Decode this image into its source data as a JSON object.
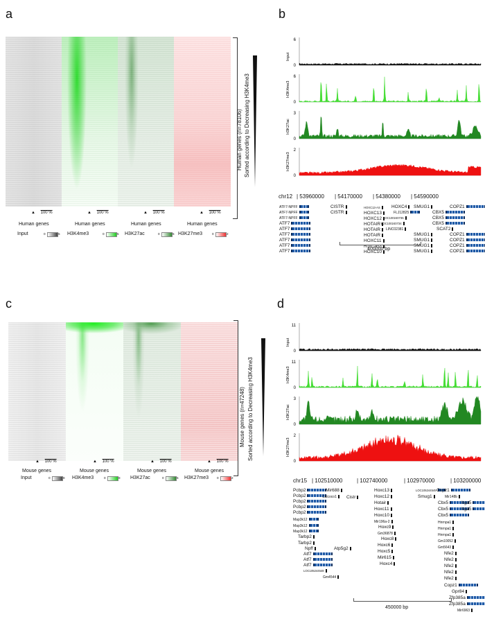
{
  "panels": {
    "a": {
      "letter": "a",
      "columns": [
        "Human genes",
        "Human genes",
        "Human genes",
        "Human genes"
      ],
      "scale_label": "100 %",
      "legend": [
        {
          "name": "Input",
          "min": "0",
          "max": "5",
          "color": "#555555"
        },
        {
          "name": "H3K4me3",
          "min": "0",
          "max": "5",
          "color": "#22cc22"
        },
        {
          "name": "H3K27ac",
          "min": "0",
          "max": "5",
          "color": "#338833"
        },
        {
          "name": "H3K27me3",
          "min": "0",
          "max": "2",
          "color": "#ee3333"
        }
      ],
      "side_label_1": "Human genes (n=78106)",
      "side_label_2": "Sorted according to Decreasing H3K4me3"
    },
    "b": {
      "letter": "b",
      "tracks": [
        {
          "name": "Input",
          "ymax": "6",
          "ymin": "0",
          "color": "#111111"
        },
        {
          "name": "H3K4me3",
          "ymax": "6",
          "ymin": "0",
          "color": "#44dd33"
        },
        {
          "name": "H3K27ac",
          "ymax": "3",
          "ymin": "0",
          "color": "#228822"
        },
        {
          "name": "H3K27me3",
          "ymax": "2",
          "ymin": "0",
          "color": "#ee1111"
        }
      ],
      "chrom": "chr12",
      "coords": [
        "| 53960000",
        "| 54170000",
        "| 54380000",
        "| 54590000"
      ],
      "genes": [
        {
          "label": "ATF7-NPFF",
          "kind": "bar",
          "size": "s"
        },
        {
          "label": "ATF7-NPFF",
          "kind": "bar",
          "size": "s"
        },
        {
          "label": "ATF7-NPFF",
          "kind": "bar",
          "size": "s"
        },
        {
          "label": "ATF7",
          "kind": "bar",
          "size": "l"
        },
        {
          "label": "ATF7",
          "kind": "bar",
          "size": "l"
        },
        {
          "label": "ATF7",
          "kind": "bar",
          "size": "l"
        },
        {
          "label": "ATF7",
          "kind": "bar",
          "size": "l"
        },
        {
          "label": "ATF7",
          "kind": "bar",
          "size": "l"
        },
        {
          "label": "ATF7",
          "kind": "bar",
          "size": "l"
        },
        {
          "label": "CISTR",
          "kind": "tick",
          "size": "l"
        },
        {
          "label": "CISTR",
          "kind": "tick",
          "size": "l"
        },
        {
          "label": "HOXC13-AS",
          "kind": "tick",
          "size": "xs"
        },
        {
          "label": "HOXC13",
          "kind": "tick",
          "size": "m"
        },
        {
          "label": "HOXC12",
          "kind": "tick",
          "size": "m"
        },
        {
          "label": "HOTAIR",
          "kind": "tick",
          "size": "m"
        },
        {
          "label": "HOTAIR",
          "kind": "tick",
          "size": "m"
        },
        {
          "label": "HOTAIR",
          "kind": "tick",
          "size": "m"
        },
        {
          "label": "HOXC11",
          "kind": "tick",
          "size": "m"
        },
        {
          "label": "HOXC-AS3",
          "kind": "tick",
          "size": "s"
        },
        {
          "label": "HOXC10",
          "kind": "tick",
          "size": "m"
        },
        {
          "label": "HOXC4",
          "kind": "tick",
          "size": "l"
        },
        {
          "label": "FLJ12825",
          "kind": "bar",
          "size": "s"
        },
        {
          "label": "LOC100240735",
          "kind": "tick",
          "size": "xs"
        },
        {
          "label": "LOC100240734",
          "kind": "tick",
          "size": "xs"
        },
        {
          "label": "LINC02381",
          "kind": "tick",
          "size": "s"
        },
        {
          "label": "SMUG1",
          "kind": "tick",
          "size": "l"
        },
        {
          "label": "SMUG1",
          "kind": "tick",
          "size": "l"
        },
        {
          "label": "SMUG1",
          "kind": "tick",
          "size": "l"
        },
        {
          "label": "SMUG1",
          "kind": "tick",
          "size": "l"
        },
        {
          "label": "SMUG1",
          "kind": "tick",
          "size": "l"
        },
        {
          "label": "CBX5",
          "kind": "bar",
          "size": "l"
        },
        {
          "label": "CBX5",
          "kind": "bar",
          "size": "l"
        },
        {
          "label": "CBX5",
          "kind": "bar",
          "size": "l"
        },
        {
          "label": "SCAT2",
          "kind": "tick",
          "size": "l"
        },
        {
          "label": "COPZ1",
          "kind": "bar",
          "size": "l"
        },
        {
          "label": "COPZ1",
          "kind": "bar",
          "size": "l"
        },
        {
          "label": "COPZ1",
          "kind": "bar",
          "size": "l"
        },
        {
          "label": "COPZ1",
          "kind": "bar",
          "size": "l"
        },
        {
          "label": "COPZ1",
          "kind": "bar",
          "size": "l"
        }
      ],
      "scalebar": "400000 bp"
    },
    "c": {
      "letter": "c",
      "columns": [
        "Mouse genes",
        "Mouse genes",
        "Mouse genes",
        "Mouse genes"
      ],
      "scale_label": "100 %",
      "legend": [
        {
          "name": "Input",
          "min": "0",
          "max": "8",
          "color": "#555555"
        },
        {
          "name": "H3K4me3",
          "min": "0",
          "max": "8",
          "color": "#22cc22"
        },
        {
          "name": "H3K27ac",
          "min": "0",
          "max": "5",
          "color": "#338833"
        },
        {
          "name": "H3K27me3",
          "min": "0",
          "max": "2",
          "color": "#ee3333"
        }
      ],
      "side_label_1": "Mouse genes (n=47248)",
      "side_label_2": "Sorted according to Decreasing H3K4me3"
    },
    "d": {
      "letter": "d",
      "tracks": [
        {
          "name": "Input",
          "ymax": "11",
          "ymin": "0",
          "color": "#111111"
        },
        {
          "name": "H3K4me3",
          "ymax": "11",
          "ymin": "0",
          "color": "#44dd33"
        },
        {
          "name": "H3K27ac",
          "ymax": "3",
          "ymin": "0",
          "color": "#228822"
        },
        {
          "name": "H3K27me3",
          "ymax": "2",
          "ymin": "0",
          "color": "#ee1111"
        }
      ],
      "chrom": "chr15",
      "coords": [
        "| 102510000",
        "| 102740000",
        "| 102970000",
        "| 103200000"
      ],
      "genes": [
        {
          "label": "Pcbp2",
          "kind": "bar",
          "size": "l"
        },
        {
          "label": "Pcbp2",
          "kind": "bar",
          "size": "l"
        },
        {
          "label": "Pcbp2",
          "kind": "bar",
          "size": "l"
        },
        {
          "label": "Pcbp2",
          "kind": "bar",
          "size": "l"
        },
        {
          "label": "Pcbp2",
          "kind": "bar",
          "size": "l"
        },
        {
          "label": "Map3k12",
          "kind": "bar",
          "size": "s"
        },
        {
          "label": "Map3k12",
          "kind": "bar",
          "size": "s"
        },
        {
          "label": "Map3k12",
          "kind": "bar",
          "size": "s"
        },
        {
          "label": "Tarbp2",
          "kind": "tick",
          "size": "l"
        },
        {
          "label": "Tarbp2",
          "kind": "tick",
          "size": "l"
        },
        {
          "label": "Npff",
          "kind": "tick",
          "size": "l"
        },
        {
          "label": "Atf7",
          "kind": "bar",
          "size": "l"
        },
        {
          "label": "Atf7",
          "kind": "bar",
          "size": "l"
        },
        {
          "label": "Atf7",
          "kind": "bar",
          "size": "l"
        },
        {
          "label": "LOC105244548",
          "kind": "tick",
          "size": "xs"
        },
        {
          "label": "Gm4544",
          "kind": "tick",
          "size": "s"
        },
        {
          "label": "Mir688",
          "kind": "tick",
          "size": "l"
        },
        {
          "label": "Calcoco1",
          "kind": "tick",
          "size": "s"
        },
        {
          "label": "Atp5g2",
          "kind": "tick",
          "size": "l"
        },
        {
          "label": "Cistr",
          "kind": "tick",
          "size": "m"
        },
        {
          "label": "Hoxc13",
          "kind": "tick",
          "size": "l"
        },
        {
          "label": "Hoxc12",
          "kind": "tick",
          "size": "l"
        },
        {
          "label": "Hotair",
          "kind": "tick",
          "size": "l"
        },
        {
          "label": "Hoxc11",
          "kind": "tick",
          "size": "l"
        },
        {
          "label": "Hoxc10",
          "kind": "tick",
          "size": "l"
        },
        {
          "label": "Mir196a-2",
          "kind": "tick",
          "size": "s"
        },
        {
          "label": "Hoxc9",
          "kind": "tick",
          "size": "l"
        },
        {
          "label": "Gm36878",
          "kind": "tick",
          "size": "s"
        },
        {
          "label": "Hoxc8",
          "kind": "tick",
          "size": "l"
        },
        {
          "label": "Hoxc6",
          "kind": "tick",
          "size": "l"
        },
        {
          "label": "Hoxc5",
          "kind": "tick",
          "size": "l"
        },
        {
          "label": "Mir615",
          "kind": "tick",
          "size": "l"
        },
        {
          "label": "Hoxc4",
          "kind": "tick",
          "size": "l"
        },
        {
          "label": "LOC105244549",
          "kind": "bar",
          "size": "xs"
        },
        {
          "label": "Smug1",
          "kind": "tick",
          "size": "l"
        },
        {
          "label": "Copz1",
          "kind": "bar",
          "size": "l"
        },
        {
          "label": "Mir148b",
          "kind": "tick",
          "size": "s"
        },
        {
          "label": "Cbx5",
          "kind": "bar",
          "size": "l"
        },
        {
          "label": "Cbx5",
          "kind": "bar",
          "size": "l"
        },
        {
          "label": "Cbx5",
          "kind": "bar",
          "size": "l"
        },
        {
          "label": "Hnrnpa1",
          "kind": "tick",
          "size": "s"
        },
        {
          "label": "Hnrnpa1",
          "kind": "tick",
          "size": "s"
        },
        {
          "label": "Hnrnpa1",
          "kind": "tick",
          "size": "s"
        },
        {
          "label": "Gm10052",
          "kind": "tick",
          "size": "s"
        },
        {
          "label": "Gm5643",
          "kind": "tick",
          "size": "s"
        },
        {
          "label": "Nfe2",
          "kind": "tick",
          "size": "l"
        },
        {
          "label": "Nfe2",
          "kind": "tick",
          "size": "l"
        },
        {
          "label": "Nfe2",
          "kind": "tick",
          "size": "l"
        },
        {
          "label": "Nfe2",
          "kind": "tick",
          "size": "l"
        },
        {
          "label": "Nfe2",
          "kind": "tick",
          "size": "l"
        },
        {
          "label": "Copz1",
          "kind": "bar",
          "size": "l"
        },
        {
          "label": "Gpr84",
          "kind": "tick",
          "size": "l"
        },
        {
          "label": "Zfp385a",
          "kind": "bar",
          "size": "l"
        },
        {
          "label": "Zfp385a",
          "kind": "bar",
          "size": "l"
        },
        {
          "label": "Mir6963",
          "kind": "tick",
          "size": "s"
        },
        {
          "label": "Itga5",
          "kind": "bar",
          "size": "l"
        },
        {
          "label": "Itga5",
          "kind": "bar",
          "size": "l"
        }
      ],
      "scalebar": "450000 bp"
    }
  }
}
